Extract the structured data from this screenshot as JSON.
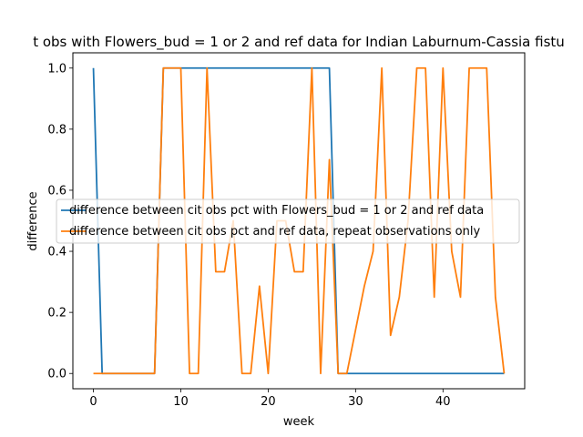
{
  "chart_data": {
    "type": "line",
    "title": "t obs with Flowers_bud = 1 or 2 and ref data for Indian Laburnum-Cassia fistu",
    "xlabel": "week",
    "ylabel": "difference",
    "xlim": [
      -2.35,
      49.35
    ],
    "ylim": [
      -0.05,
      1.05
    ],
    "xticks": [
      0,
      10,
      20,
      30,
      40
    ],
    "yticks": [
      0.0,
      0.2,
      0.4,
      0.6,
      0.8,
      1.0
    ],
    "xtick_labels": [
      "0",
      "10",
      "20",
      "30",
      "40"
    ],
    "ytick_labels": [
      "0.0",
      "0.2",
      "0.4",
      "0.6",
      "0.8",
      "1.0"
    ],
    "legend_position": "center-right",
    "series": [
      {
        "name": "difference between cit obs pct with Flowers_bud = 1 or 2 and ref data",
        "color": "#1f77b4",
        "x": [
          0,
          1,
          7,
          8,
          27,
          28,
          47
        ],
        "y": [
          1.0,
          0.0,
          0.0,
          1.0,
          1.0,
          0.0,
          0.0
        ]
      },
      {
        "name": "difference between cit obs pct and ref data, repeat observations only",
        "color": "#ff7f0e",
        "x": [
          0,
          1,
          2,
          3,
          4,
          5,
          6,
          7,
          8,
          9,
          10,
          11,
          12,
          13,
          14,
          15,
          16,
          17,
          18,
          19,
          20,
          21,
          22,
          23,
          24,
          25,
          26,
          27,
          28,
          29,
          30,
          31,
          32,
          33,
          34,
          35,
          36,
          37,
          38,
          39,
          40,
          41,
          42,
          43,
          44,
          45,
          46,
          47
        ],
        "y": [
          0,
          0,
          0,
          0,
          0,
          0,
          0,
          0,
          1,
          1,
          1,
          0,
          0,
          1,
          0.333,
          0.333,
          0.5,
          0,
          0,
          0.286,
          0,
          0.5,
          0.5,
          0.333,
          0.333,
          1,
          0,
          0.7,
          0,
          0,
          0.143,
          0.286,
          0.4,
          1,
          0.125,
          0.25,
          0.5,
          1,
          1,
          0.25,
          1,
          0.4,
          0.25,
          1,
          1,
          1,
          0.25,
          0
        ]
      }
    ]
  }
}
